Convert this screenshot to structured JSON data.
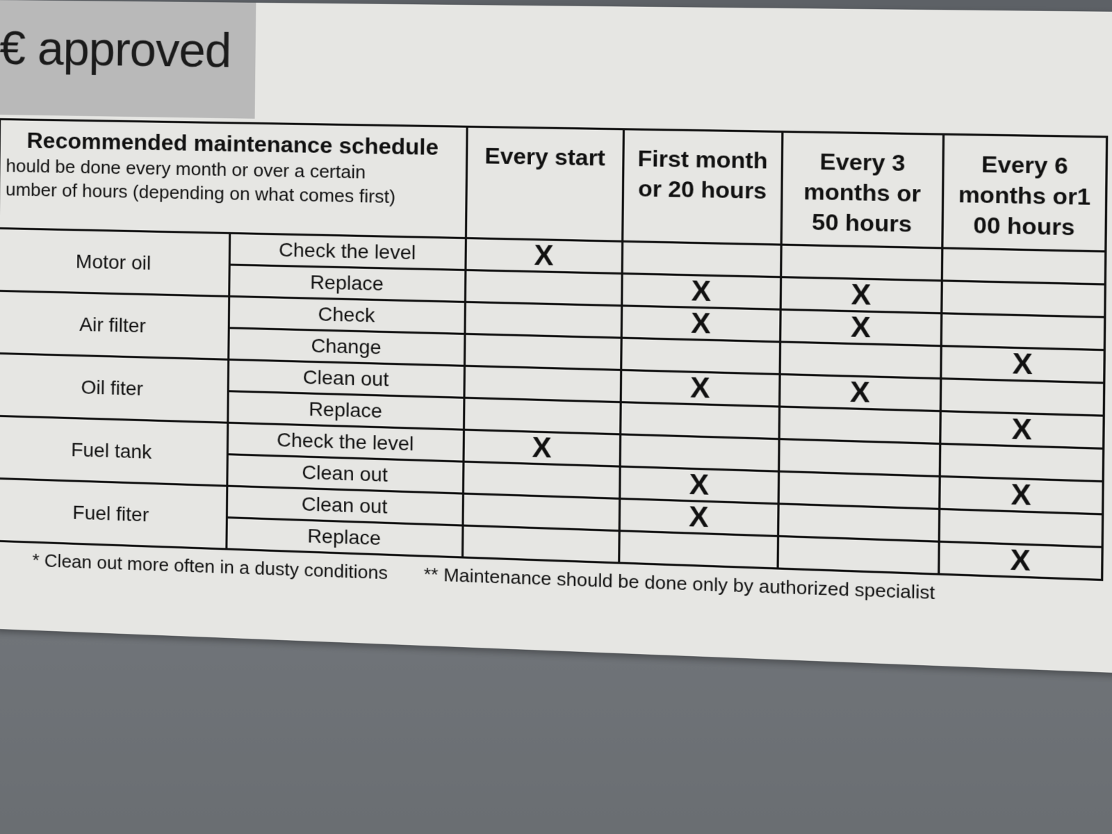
{
  "brand": {
    "text": "€ approved"
  },
  "table": {
    "title": "Recommended maintenance schedule",
    "subtitle_lines": [
      "hould be done every month or over a certain",
      "umber of hours (depending on what comes first)"
    ],
    "columns": [
      "Every start",
      "First month or 20 hours",
      "Every 3 months or 50 hours",
      "Every 6 months or1 00 hours"
    ],
    "groups": [
      {
        "name": "Motor oil",
        "rows": [
          {
            "action": "Check the level",
            "marks": [
              "X",
              "",
              "",
              ""
            ]
          },
          {
            "action": "Replace",
            "marks": [
              "",
              "X",
              "X",
              ""
            ]
          }
        ]
      },
      {
        "name": "Air filter",
        "rows": [
          {
            "action": "Check",
            "marks": [
              "",
              "X",
              "X",
              ""
            ]
          },
          {
            "action": "Change",
            "marks": [
              "",
              "",
              "",
              "X"
            ]
          }
        ]
      },
      {
        "name": "Oil fiter",
        "rows": [
          {
            "action": "Clean out",
            "marks": [
              "",
              "X",
              "X",
              ""
            ]
          },
          {
            "action": "Replace",
            "marks": [
              "",
              "",
              "",
              "X"
            ]
          }
        ]
      },
      {
        "name": "Fuel tank",
        "rows": [
          {
            "action": "Check the level",
            "marks": [
              "X",
              "",
              "",
              ""
            ]
          },
          {
            "action": "Clean out",
            "marks": [
              "",
              "X",
              "",
              "X"
            ]
          }
        ]
      },
      {
        "name": "Fuel fiter",
        "rows": [
          {
            "action": "Clean out",
            "marks": [
              "",
              "X",
              "",
              ""
            ]
          },
          {
            "action": "Replace",
            "marks": [
              "",
              "",
              "",
              "X"
            ]
          }
        ]
      }
    ]
  },
  "footer": {
    "note1": "* Clean out more often in a dusty conditions",
    "note2": "** Maintenance should be done only by authorized specialist"
  }
}
